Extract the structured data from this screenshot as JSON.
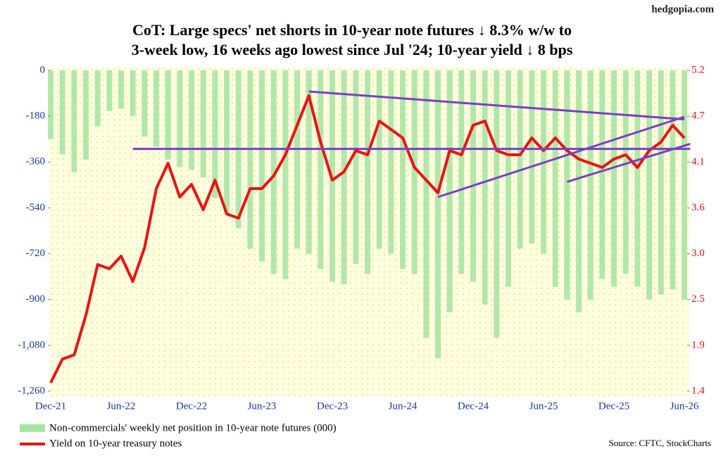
{
  "chart_data": {
    "type": "bar",
    "watermark": "hedgopia.com",
    "title": [
      "CoT: Large specs' net shorts in 10-year note futures ↓ 8.3% w/w to",
      "3-week low, 16 weeks ago lowest since Jul '24; 10-year yield ↓ 8 bps"
    ],
    "source": "Source: CFTC, StockCharts",
    "categories": [
      "Dec-21",
      null,
      null,
      null,
      null,
      null,
      "Jun-22",
      null,
      null,
      null,
      null,
      null,
      "Dec-22",
      null,
      null,
      null,
      null,
      null,
      "Jun-23",
      null,
      null,
      null,
      null,
      null,
      "Dec-23",
      null,
      null,
      null,
      null,
      null,
      "Jun-24",
      null,
      null,
      null,
      null,
      null,
      "Dec-24",
      null,
      null,
      null,
      null,
      null,
      "Jun-25",
      null,
      null,
      null,
      null,
      null,
      "Dec-25",
      null,
      null,
      null,
      null,
      null,
      "Jun-26"
    ],
    "series": [
      {
        "name": "Non-commercials' weekly net position in 10-year note futures (000)",
        "type": "bar",
        "color": "#a6e3a0",
        "values": [
          -270,
          -330,
          -400,
          -350,
          -220,
          -160,
          -150,
          -180,
          -260,
          -300,
          -350,
          -380,
          -390,
          -420,
          -500,
          -560,
          -620,
          -700,
          -750,
          -800,
          -820,
          -700,
          -720,
          -780,
          -830,
          -840,
          -760,
          -800,
          -700,
          -720,
          -780,
          -800,
          -1050,
          -1130,
          -950,
          -800,
          -830,
          -920,
          -1050,
          -850,
          -700,
          -680,
          -720,
          -850,
          -900,
          -950,
          -900,
          -820,
          -850,
          -800,
          -850,
          -900,
          -880,
          -860,
          -900
        ]
      },
      {
        "name": "Yield on 10-year treasury notes",
        "type": "line",
        "axis": "y2",
        "color": "#ee1111",
        "values": [
          1.5,
          1.78,
          1.83,
          2.3,
          2.9,
          2.85,
          3.0,
          2.7,
          3.1,
          3.8,
          4.1,
          3.7,
          3.85,
          3.55,
          3.9,
          3.5,
          3.45,
          3.8,
          3.8,
          3.95,
          4.2,
          4.55,
          4.9,
          4.35,
          3.9,
          4.0,
          4.25,
          4.2,
          4.6,
          4.5,
          4.4,
          4.05,
          3.9,
          3.75,
          4.25,
          4.2,
          4.55,
          4.6,
          4.25,
          4.2,
          4.2,
          4.4,
          4.25,
          4.4,
          4.25,
          4.15,
          4.1,
          4.05,
          4.15,
          4.2,
          4.05,
          4.25,
          4.35,
          4.55,
          4.4
        ]
      }
    ],
    "trendlines": [
      {
        "color": "#7b3fc4",
        "x": [
          22,
          54
        ],
        "values": [
          4.95,
          4.62
        ]
      },
      {
        "color": "#7b3fc4",
        "x": [
          7,
          54.5
        ],
        "values": [
          4.27,
          4.27
        ]
      },
      {
        "color": "#7b3fc4",
        "x": [
          33,
          54
        ],
        "values": [
          3.7,
          4.65
        ]
      },
      {
        "color": "#7b3fc4",
        "x": [
          44,
          54.5
        ],
        "values": [
          3.88,
          4.33
        ]
      }
    ],
    "ylim": [
      -1260,
      0
    ],
    "yticks": [
      0,
      -180,
      -360,
      -540,
      -720,
      -900,
      {
        "value": -1080,
        "label": "-1,080"
      },
      {
        "value": -1260,
        "label": "-1,260"
      }
    ],
    "y2lim": [
      1.4,
      5.2
    ],
    "y2ticks": [
      {
        "value": 1.4,
        "label": "1.4"
      },
      {
        "value": 1.943,
        "label": "1.9"
      },
      {
        "value": 2.486,
        "label": "2.5"
      },
      {
        "value": 3.029,
        "label": "3.0"
      },
      {
        "value": 3.571,
        "label": "3.6"
      },
      {
        "value": 4.114,
        "label": "4.1"
      },
      {
        "value": 4.657,
        "label": "4.7"
      },
      {
        "value": 5.2,
        "label": "5.2"
      }
    ]
  }
}
